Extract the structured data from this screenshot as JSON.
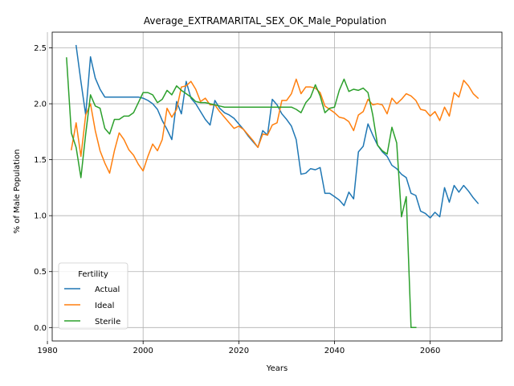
{
  "chart_data": {
    "type": "line",
    "title": "Average_EXTRAMARITAL_SEX_OK_Male_Population",
    "xlabel": "Years",
    "ylabel": "% of Male Population",
    "xlim": [
      1981,
      2075
    ],
    "ylim": [
      -0.12,
      2.64
    ],
    "xticks": [
      1980,
      2000,
      2020,
      2040,
      2060
    ],
    "yticks": [
      0.0,
      0.5,
      1.0,
      1.5,
      2.0,
      2.5
    ],
    "ytick_labels": [
      "0.0",
      "0.5",
      "1.0",
      "1.5",
      "2.0",
      "2.5"
    ],
    "grid": true,
    "legend": {
      "title": "Fertility",
      "position": "lower-left"
    },
    "series": [
      {
        "name": "Actual",
        "color": "#1f77b4",
        "x": [
          1986,
          1987,
          1988,
          1989,
          1990,
          1991,
          1992,
          1993,
          1994,
          1995,
          1996,
          1997,
          1998,
          1999,
          2000,
          2001,
          2002,
          2003,
          2004,
          2005,
          2006,
          2007,
          2008,
          2009,
          2010,
          2011,
          2012,
          2013,
          2014,
          2015,
          2016,
          2017,
          2018,
          2019,
          2020,
          2021,
          2022,
          2023,
          2024,
          2025,
          2026,
          2027,
          2028,
          2029,
          2030,
          2031,
          2032,
          2033,
          2034,
          2035,
          2036,
          2037,
          2038,
          2039,
          2040,
          2041,
          2042,
          2043,
          2044,
          2045,
          2046,
          2047,
          2048,
          2049,
          2050,
          2051,
          2052,
          2053,
          2054,
          2055,
          2056,
          2057,
          2058,
          2059,
          2060,
          2061,
          2062,
          2063,
          2064,
          2065,
          2066,
          2067,
          2068,
          2069,
          2070
        ],
        "y": [
          2.52,
          2.2,
          1.9,
          2.42,
          2.23,
          2.13,
          2.06,
          2.06,
          2.06,
          2.06,
          2.06,
          2.06,
          2.06,
          2.06,
          2.05,
          2.03,
          2.0,
          1.95,
          1.85,
          1.77,
          1.68,
          2.02,
          1.91,
          2.2,
          2.05,
          2.0,
          1.93,
          1.86,
          1.81,
          2.03,
          1.96,
          1.92,
          1.9,
          1.87,
          1.82,
          1.77,
          1.71,
          1.66,
          1.61,
          1.76,
          1.72,
          2.04,
          1.99,
          1.91,
          1.86,
          1.8,
          1.68,
          1.37,
          1.38,
          1.42,
          1.41,
          1.43,
          1.2,
          1.2,
          1.17,
          1.14,
          1.09,
          1.21,
          1.15,
          1.57,
          1.62,
          1.82,
          1.72,
          1.63,
          1.57,
          1.53,
          1.45,
          1.42,
          1.37,
          1.34,
          1.2,
          1.18,
          1.04,
          1.02,
          0.98,
          1.03,
          0.99,
          1.25,
          1.12,
          1.27,
          1.21,
          1.27,
          1.22,
          1.16,
          1.11
        ]
      },
      {
        "name": "Ideal",
        "color": "#ff7f0e",
        "x": [
          1985,
          1986,
          1987,
          1988,
          1989,
          1990,
          1991,
          1992,
          1993,
          1994,
          1995,
          1996,
          1997,
          1998,
          1999,
          2000,
          2001,
          2002,
          2003,
          2004,
          2005,
          2006,
          2007,
          2008,
          2009,
          2010,
          2011,
          2012,
          2013,
          2014,
          2015,
          2016,
          2017,
          2018,
          2019,
          2020,
          2021,
          2022,
          2023,
          2024,
          2025,
          2026,
          2027,
          2028,
          2029,
          2030,
          2031,
          2032,
          2033,
          2034,
          2035,
          2036,
          2037,
          2038,
          2039,
          2040,
          2041,
          2042,
          2043,
          2044,
          2045,
          2046,
          2047,
          2048,
          2049,
          2050,
          2051,
          2052,
          2053,
          2054,
          2055,
          2056,
          2057,
          2058,
          2059,
          2060,
          2061,
          2062,
          2063,
          2064,
          2065,
          2066,
          2067,
          2068,
          2069,
          2070
        ],
        "y": [
          1.59,
          1.83,
          1.53,
          1.9,
          2.0,
          1.76,
          1.58,
          1.47,
          1.38,
          1.58,
          1.74,
          1.68,
          1.59,
          1.54,
          1.46,
          1.4,
          1.53,
          1.64,
          1.58,
          1.68,
          1.96,
          1.88,
          1.95,
          2.15,
          2.16,
          2.2,
          2.13,
          2.02,
          2.05,
          1.99,
          1.99,
          1.93,
          1.88,
          1.83,
          1.78,
          1.8,
          1.77,
          1.72,
          1.67,
          1.61,
          1.73,
          1.72,
          1.81,
          1.83,
          2.03,
          2.03,
          2.09,
          2.22,
          2.09,
          2.15,
          2.15,
          2.14,
          2.1,
          1.98,
          1.95,
          1.92,
          1.88,
          1.87,
          1.84,
          1.76,
          1.9,
          1.93,
          2.04,
          1.99,
          2.0,
          1.99,
          1.91,
          2.05,
          2.0,
          2.04,
          2.09,
          2.07,
          2.03,
          1.95,
          1.94,
          1.89,
          1.93,
          1.85,
          1.97,
          1.89,
          2.1,
          2.06,
          2.21,
          2.16,
          2.09,
          2.05
        ]
      },
      {
        "name": "Sterile",
        "color": "#2ca02c",
        "x": [
          1984,
          1985,
          1986,
          1987,
          1988,
          1989,
          1990,
          1991,
          1992,
          1993,
          1994,
          1995,
          1996,
          1997,
          1998,
          1999,
          2000,
          2001,
          2002,
          2003,
          2004,
          2005,
          2006,
          2007,
          2008,
          2009,
          2010,
          2011,
          2012,
          2013,
          2014,
          2015,
          2016,
          2017,
          2018,
          2019,
          2020,
          2021,
          2022,
          2023,
          2024,
          2025,
          2026,
          2027,
          2028,
          2029,
          2030,
          2031,
          2032,
          2033,
          2034,
          2035,
          2036,
          2037,
          2038,
          2039,
          2040,
          2041,
          2042,
          2043,
          2044,
          2045,
          2046,
          2047,
          2048,
          2049,
          2050,
          2051,
          2052,
          2053,
          2054,
          2055,
          2056,
          2057
        ],
        "y": [
          2.41,
          1.74,
          1.61,
          1.34,
          1.73,
          2.08,
          1.98,
          1.96,
          1.78,
          1.73,
          1.86,
          1.86,
          1.89,
          1.89,
          1.92,
          2.01,
          2.1,
          2.1,
          2.08,
          2.01,
          2.04,
          2.12,
          2.08,
          2.16,
          2.12,
          2.09,
          2.06,
          2.02,
          2.01,
          2.01,
          2.0,
          1.99,
          1.98,
          1.97,
          1.97,
          1.97,
          1.97,
          1.97,
          1.97,
          1.97,
          1.97,
          1.97,
          1.97,
          1.97,
          1.97,
          1.97,
          1.97,
          1.97,
          1.95,
          1.92,
          2.01,
          2.06,
          2.17,
          2.07,
          1.92,
          1.96,
          1.97,
          2.12,
          2.22,
          2.11,
          2.13,
          2.12,
          2.14,
          2.1,
          1.9,
          1.63,
          1.58,
          1.55,
          1.79,
          1.65,
          0.99,
          1.17,
          0.0,
          0.0
        ]
      }
    ]
  }
}
